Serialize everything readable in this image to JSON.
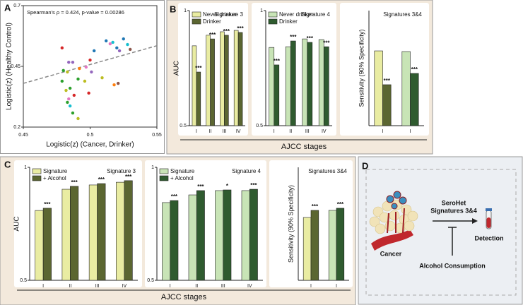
{
  "panel_labels": [
    "A",
    "B",
    "C",
    "D"
  ],
  "panel_xlabels": [
    "AJCC stages",
    "AJCC stages"
  ],
  "chart_data": [
    {
      "type": "scatter",
      "title": "Spearman's ρ = 0.424, p-value = 0.00286",
      "xlabel": "Logistic(z) (Cancer, Drinker)",
      "ylabel": "Logistic(z) (Healthy Control)",
      "xlim": [
        0.45,
        0.55
      ],
      "ylim": [
        0.2,
        0.7
      ],
      "xticks": [
        0.45,
        0.5,
        0.55
      ],
      "yticks": [
        0.2,
        0.45,
        0.7
      ],
      "x": [
        0.479,
        0.484,
        0.487,
        0.48,
        0.483,
        0.492,
        0.491,
        0.497,
        0.5,
        0.503,
        0.512,
        0.515,
        0.517,
        0.52,
        0.522,
        0.525,
        0.528,
        0.53,
        0.482,
        0.485,
        0.488,
        0.483,
        0.485,
        0.487,
        0.491,
        0.484,
        0.496,
        0.501,
        0.509,
        0.518,
        0.521,
        0.499,
        0.479
      ],
      "y": [
        0.526,
        0.467,
        0.467,
        0.433,
        0.427,
        0.441,
        0.398,
        0.447,
        0.476,
        0.514,
        0.555,
        0.543,
        0.549,
        0.526,
        0.514,
        0.563,
        0.54,
        0.52,
        0.351,
        0.36,
        0.331,
        0.302,
        0.287,
        0.258,
        0.235,
        0.316,
        0.389,
        0.427,
        0.403,
        0.374,
        0.38,
        0.34,
        0.389
      ],
      "colors": [
        "#d62728",
        "#9467bd",
        "#9467bd",
        "#2ca02c",
        "#bcbd22",
        "#ff7f0e",
        "#2ca02c",
        "#e377c2",
        "#d62728",
        "#1f77b4",
        "#1f77b4",
        "#e377c2",
        "#17becf",
        "#1f77b4",
        "#9467bd",
        "#1f77b4",
        "#17becf",
        "#8c564b",
        "#bcbd22",
        "#2ca02c",
        "#d62728",
        "#2ca02c",
        "#17becf",
        "#2ca02c",
        "#bcbd22",
        "#e377c2",
        "#bcbd22",
        "#9467bd",
        "#bcbd22",
        "#ff7f0e",
        "#8c564b",
        "#d62728",
        "#2ca02c"
      ],
      "trendline": {
        "x": [
          0.45,
          0.55
        ],
        "y": [
          0.38,
          0.535
        ]
      }
    },
    {
      "type": "bar",
      "title": "Signature 3",
      "ylabel": "AUC",
      "categories": [
        "I",
        "II",
        "III",
        "IV"
      ],
      "ylim": [
        0.5,
        1
      ],
      "yticks": [
        0.5,
        1
      ],
      "series": [
        {
          "name": "Never drinker",
          "color": "#e9eca2",
          "values": [
            0.847,
            0.893,
            0.908,
            0.914
          ]
        },
        {
          "name": "Drinker",
          "color": "#5b6631",
          "values": [
            0.733,
            0.877,
            0.893,
            0.905
          ]
        }
      ],
      "annotations": [
        "***",
        "***",
        "***",
        "***"
      ]
    },
    {
      "type": "bar",
      "title": "Signature 4",
      "categories": [
        "I",
        "II",
        "III",
        "IV"
      ],
      "ylim": [
        0.5,
        1
      ],
      "yticks": [
        0.5,
        1
      ],
      "series": [
        {
          "name": "Never drinker",
          "color": "#c8e4b6",
          "values": [
            0.84,
            0.843,
            0.877,
            0.874
          ]
        },
        {
          "name": "Drinker",
          "color": "#2f5b2f",
          "values": [
            0.764,
            0.868,
            0.862,
            0.843
          ]
        }
      ],
      "annotations": [
        "***",
        "***",
        "***",
        "***"
      ]
    },
    {
      "type": "bar",
      "title": "Signatures 3&4",
      "ylabel": "Sensitivity (90% Specificity)",
      "categories": [
        "I",
        "I"
      ],
      "ylim": [
        0,
        1
      ],
      "series": [
        {
          "colors": [
            "#e9eca2",
            "#c8e4b6"
          ],
          "values": [
            0.65,
            0.644
          ]
        },
        {
          "colors": [
            "#5b6631",
            "#2f5b2f"
          ],
          "values": [
            0.356,
            0.454
          ]
        }
      ],
      "annotations": [
        "***",
        "***"
      ]
    },
    {
      "type": "bar",
      "title": "Signature 3",
      "ylabel": "AUC",
      "categories": [
        "I",
        "II",
        "III",
        "IV"
      ],
      "ylim": [
        0.5,
        1
      ],
      "yticks": [
        0.5,
        1
      ],
      "series": [
        {
          "name": "Signature",
          "color": "#e9eca2",
          "values": [
            0.809,
            0.903,
            0.922,
            0.934
          ]
        },
        {
          "name": "+ Alcohol",
          "color": "#5b6631",
          "values": [
            0.819,
            0.916,
            0.928,
            0.941
          ]
        }
      ],
      "annotations": [
        "***",
        "***",
        "***",
        "***"
      ]
    },
    {
      "type": "bar",
      "title": "Signature 4",
      "categories": [
        "I",
        "II",
        "III",
        "IV"
      ],
      "ylim": [
        0.5,
        1
      ],
      "yticks": [
        0.5,
        1
      ],
      "series": [
        {
          "name": "Signature",
          "color": "#c8e4b6",
          "values": [
            0.844,
            0.878,
            0.897,
            0.897
          ]
        },
        {
          "name": "+ Alcohol",
          "color": "#2f5b2f",
          "values": [
            0.853,
            0.897,
            0.9,
            0.903
          ]
        }
      ],
      "annotations": [
        "***",
        "***",
        "*",
        "***"
      ]
    },
    {
      "type": "bar",
      "title": "Signatures 3&4",
      "ylabel": "Sensitivity (90% Specificity)",
      "categories": [
        "I",
        "I"
      ],
      "ylim": [
        0,
        1
      ],
      "series": [
        {
          "colors": [
            "#e9eca2",
            "#c8e4b6"
          ],
          "values": [
            0.556,
            0.619
          ]
        },
        {
          "colors": [
            "#5b6631",
            "#2f5b2f"
          ],
          "values": [
            0.619,
            0.638
          ]
        }
      ],
      "annotations": [
        "***",
        "***"
      ]
    }
  ],
  "diagram": {
    "arrow_label": [
      "SeroHet",
      "Signatures 3&4"
    ],
    "source": "Cancer",
    "target": "Detection",
    "inhibitor": "Alcohol Consumption"
  }
}
